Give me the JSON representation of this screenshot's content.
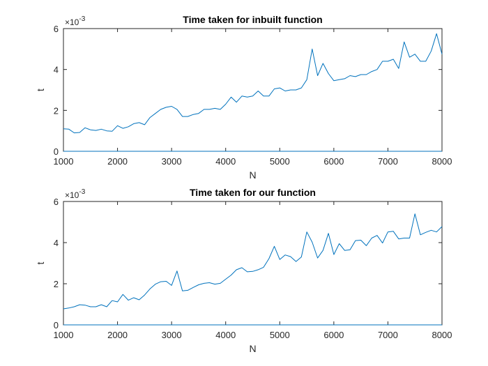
{
  "chart_data": [
    {
      "type": "line",
      "title": "Time taken for inbuilt function",
      "xlabel": "N",
      "ylabel": "t",
      "y_exponent": "×10",
      "y_exponent_power": "-3",
      "xlim": [
        1000,
        8000
      ],
      "ylim": [
        0,
        6
      ],
      "xticks": [
        "1000",
        "2000",
        "3000",
        "4000",
        "5000",
        "6000",
        "7000",
        "8000"
      ],
      "yticks": [
        "0",
        "2",
        "4",
        "6"
      ],
      "color": "#0072bd",
      "series": [
        {
          "x": [
            1000,
            1100,
            1200,
            1300,
            1400,
            1500,
            1600,
            1700,
            1800,
            1900,
            2000,
            2100,
            2200,
            2300,
            2400,
            2500,
            2600,
            2700,
            2800,
            2900,
            3000,
            3100,
            3200,
            3300,
            3400,
            3500,
            3600,
            3700,
            3800,
            3900,
            4000,
            4100,
            4200,
            4300,
            4400,
            4500,
            4600,
            4700,
            4800,
            4900,
            5000,
            5100,
            5200,
            5300,
            5400,
            5500,
            5600,
            5700,
            5800,
            5900,
            6000,
            6100,
            6200,
            6300,
            6400,
            6500,
            6600,
            6700,
            6800,
            6900,
            7000,
            7100,
            7200,
            7300,
            7400,
            7500,
            7600,
            7700,
            7800,
            7900,
            8000
          ],
          "y": [
            1.1,
            1.08,
            0.9,
            0.92,
            1.15,
            1.05,
            1.02,
            1.08,
            1.0,
            0.98,
            1.25,
            1.12,
            1.2,
            1.35,
            1.4,
            1.3,
            1.65,
            1.85,
            2.05,
            2.15,
            2.2,
            2.05,
            1.7,
            1.7,
            1.8,
            1.85,
            2.05,
            2.05,
            2.1,
            2.05,
            2.3,
            2.65,
            2.4,
            2.7,
            2.65,
            2.7,
            2.95,
            2.7,
            2.7,
            3.05,
            3.1,
            2.95,
            3.0,
            3.0,
            3.1,
            3.5,
            5.0,
            3.7,
            4.3,
            3.8,
            3.45,
            3.5,
            3.55,
            3.7,
            3.65,
            3.75,
            3.75,
            3.9,
            4.0,
            4.4,
            4.4,
            4.5,
            4.05,
            5.35,
            4.6,
            4.75,
            4.4,
            4.4,
            4.9,
            5.75,
            4.75
          ],
          "zero_line": [
            0,
            0
          ]
        }
      ]
    },
    {
      "type": "line",
      "title": "Time taken for  our function",
      "xlabel": "N",
      "ylabel": "t",
      "y_exponent": "×10",
      "y_exponent_power": "-3",
      "xlim": [
        1000,
        8000
      ],
      "ylim": [
        0,
        6
      ],
      "xticks": [
        "1000",
        "2000",
        "3000",
        "4000",
        "5000",
        "6000",
        "7000",
        "8000"
      ],
      "yticks": [
        "0",
        "2",
        "4",
        "6"
      ],
      "color": "#0072bd",
      "series": [
        {
          "x": [
            1000,
            1100,
            1200,
            1300,
            1400,
            1500,
            1600,
            1700,
            1800,
            1900,
            2000,
            2100,
            2200,
            2300,
            2400,
            2500,
            2600,
            2700,
            2800,
            2900,
            3000,
            3100,
            3200,
            3300,
            3400,
            3500,
            3600,
            3700,
            3800,
            3900,
            4000,
            4100,
            4200,
            4300,
            4400,
            4500,
            4600,
            4700,
            4800,
            4900,
            5000,
            5100,
            5200,
            5300,
            5400,
            5500,
            5600,
            5700,
            5800,
            5900,
            6000,
            6100,
            6200,
            6300,
            6400,
            6500,
            6600,
            6700,
            6800,
            6900,
            7000,
            7100,
            7200,
            7300,
            7400,
            7500,
            7600,
            7700,
            7800,
            7900,
            8000
          ],
          "y": [
            0.78,
            0.82,
            0.88,
            0.98,
            0.96,
            0.88,
            0.88,
            0.98,
            0.88,
            1.18,
            1.12,
            1.48,
            1.2,
            1.32,
            1.22,
            1.45,
            1.75,
            1.98,
            2.1,
            2.12,
            1.92,
            2.62,
            1.65,
            1.68,
            1.82,
            1.95,
            2.02,
            2.05,
            1.98,
            2.02,
            2.22,
            2.42,
            2.68,
            2.78,
            2.58,
            2.6,
            2.68,
            2.8,
            3.22,
            3.82,
            3.18,
            3.4,
            3.32,
            3.08,
            3.3,
            4.52,
            4.02,
            3.25,
            3.62,
            4.45,
            3.42,
            3.95,
            3.62,
            3.65,
            4.1,
            4.12,
            3.85,
            4.22,
            4.35,
            3.98,
            4.52,
            4.55,
            4.18,
            4.22,
            4.22,
            5.4,
            4.38,
            4.5,
            4.6,
            4.52,
            4.78
          ],
          "zero_line": [
            0,
            0
          ]
        }
      ]
    }
  ]
}
